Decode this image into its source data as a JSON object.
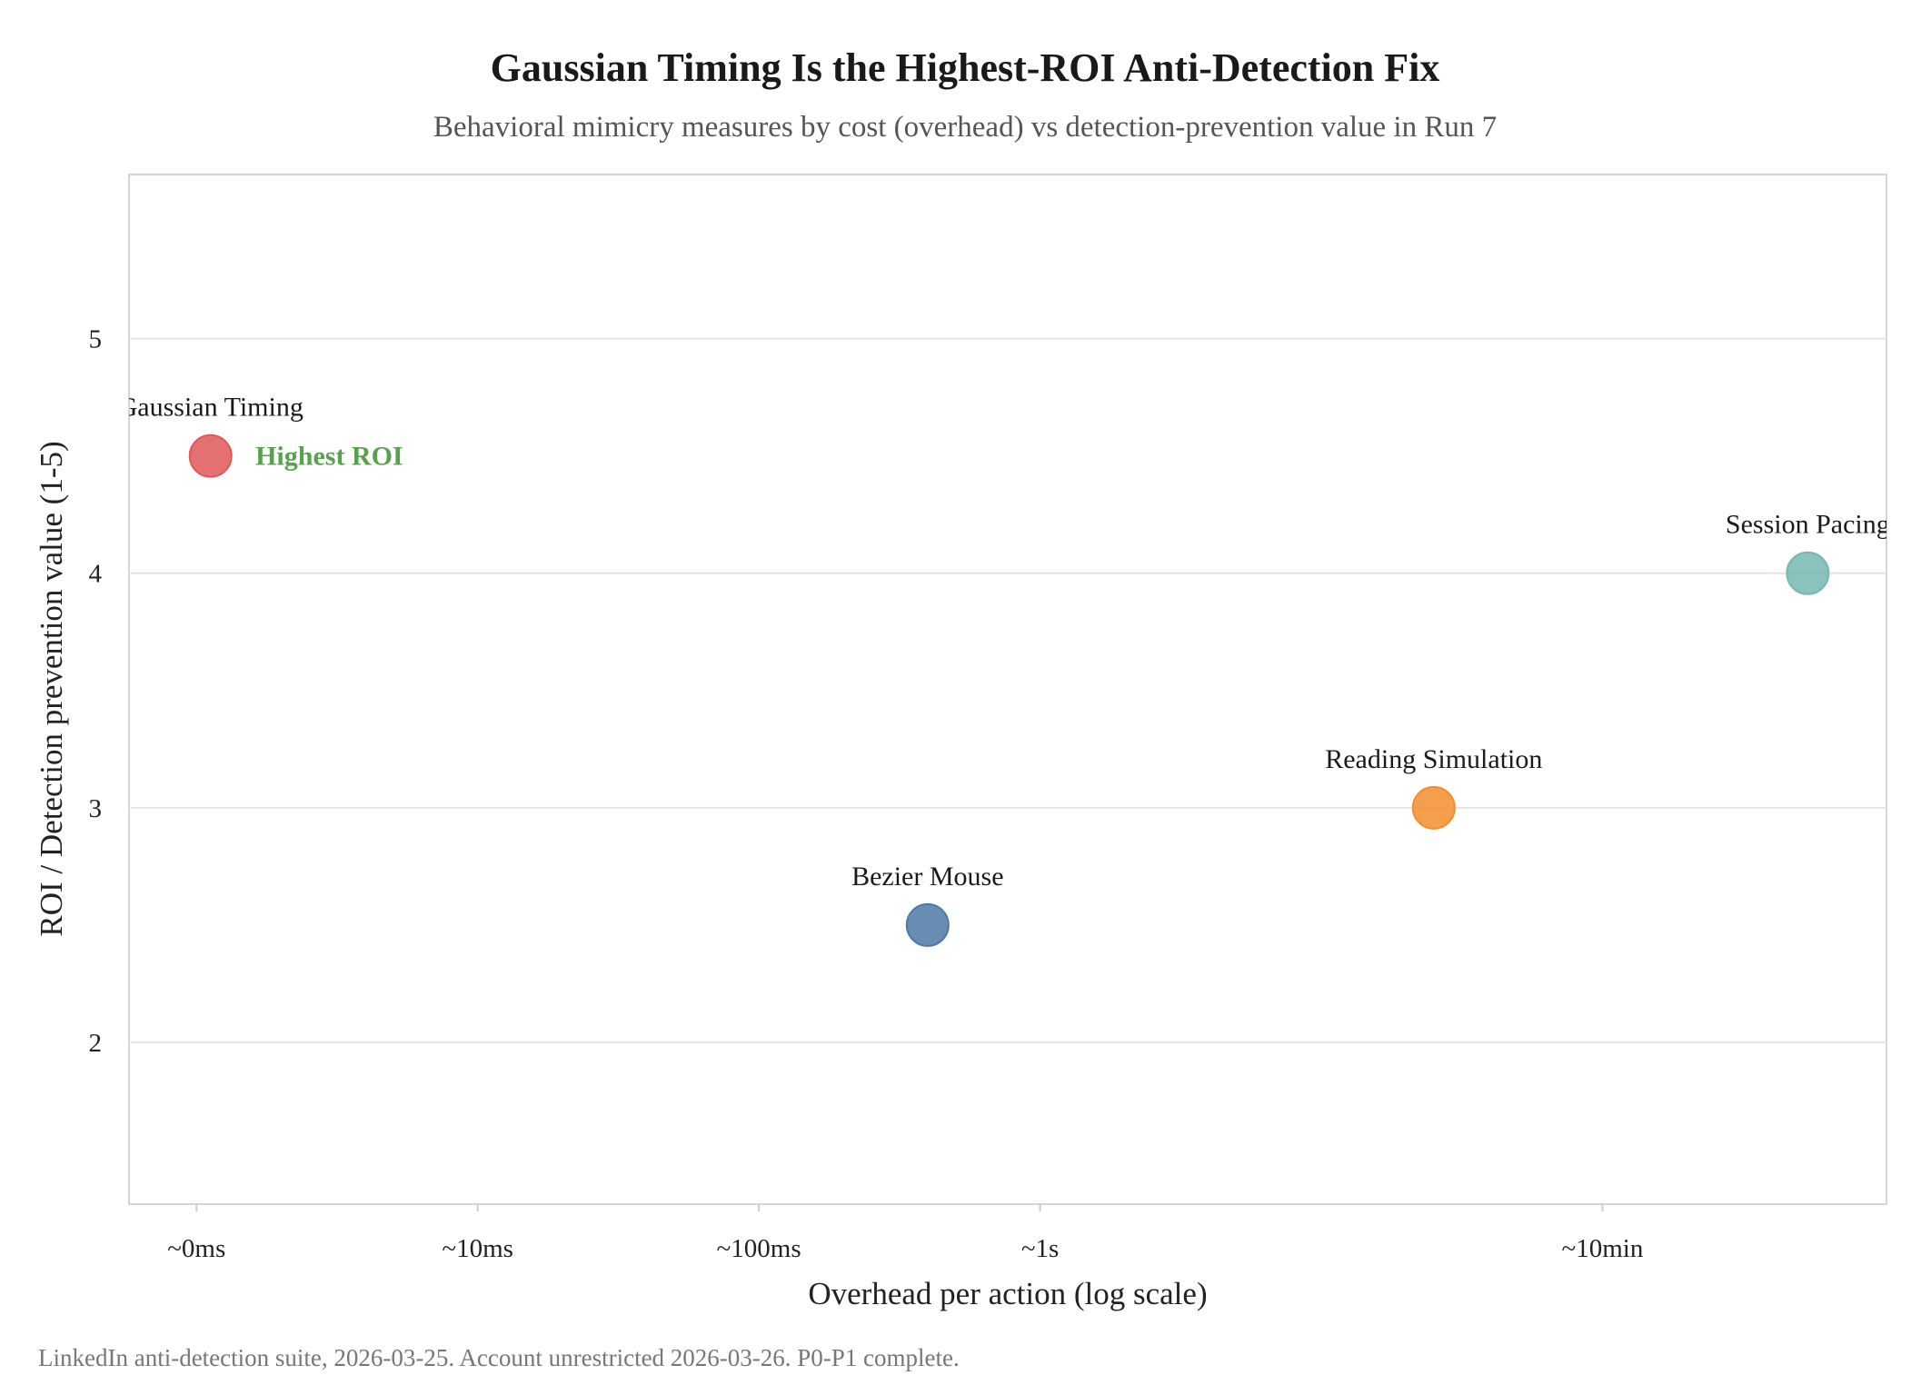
{
  "chart_data": {
    "type": "scatter",
    "title": "Gaussian Timing Is the Highest-ROI Anti-Detection Fix",
    "subtitle": "Behavioral mimicry measures by cost (overhead) vs detection-prevention value in Run 7",
    "xlabel": "Overhead per action (log scale)",
    "ylabel": "ROI / Detection prevention value (1-5)",
    "footer": "LinkedIn anti-detection suite, 2026-03-25. Account unrestricted 2026-03-26. P0-P1 complete.",
    "x_scale": "log",
    "xlim": [
      -0.24,
      6.01
    ],
    "ylim": [
      1.31,
      5.7
    ],
    "grid": "horizontal",
    "x_ticks": [
      {
        "value": 0,
        "label": "~0ms"
      },
      {
        "value": 1,
        "label": "~10ms"
      },
      {
        "value": 2,
        "label": "~100ms"
      },
      {
        "value": 3,
        "label": "~1s"
      },
      {
        "value": 5,
        "label": "~10min"
      }
    ],
    "y_ticks": [
      {
        "value": 2,
        "label": "2"
      },
      {
        "value": 3,
        "label": "3"
      },
      {
        "value": 4,
        "label": "4"
      },
      {
        "value": 5,
        "label": "5"
      }
    ],
    "points": [
      {
        "label": "Gaussian Timing",
        "x": 0.05,
        "y": 4.5,
        "color": "#e15759"
      },
      {
        "label": "Bezier Mouse",
        "x": 2.6,
        "y": 2.5,
        "color": "#4e79a7"
      },
      {
        "label": "Reading Simulation",
        "x": 4.4,
        "y": 3.0,
        "color": "#f28e2b"
      },
      {
        "label": "Session Pacing",
        "x": 5.73,
        "y": 4.0,
        "color": "#76b7b2"
      }
    ],
    "annotations": [
      {
        "text": "Highest ROI",
        "x": 0.3,
        "y": 4.5,
        "color": "#59a14f"
      }
    ]
  }
}
